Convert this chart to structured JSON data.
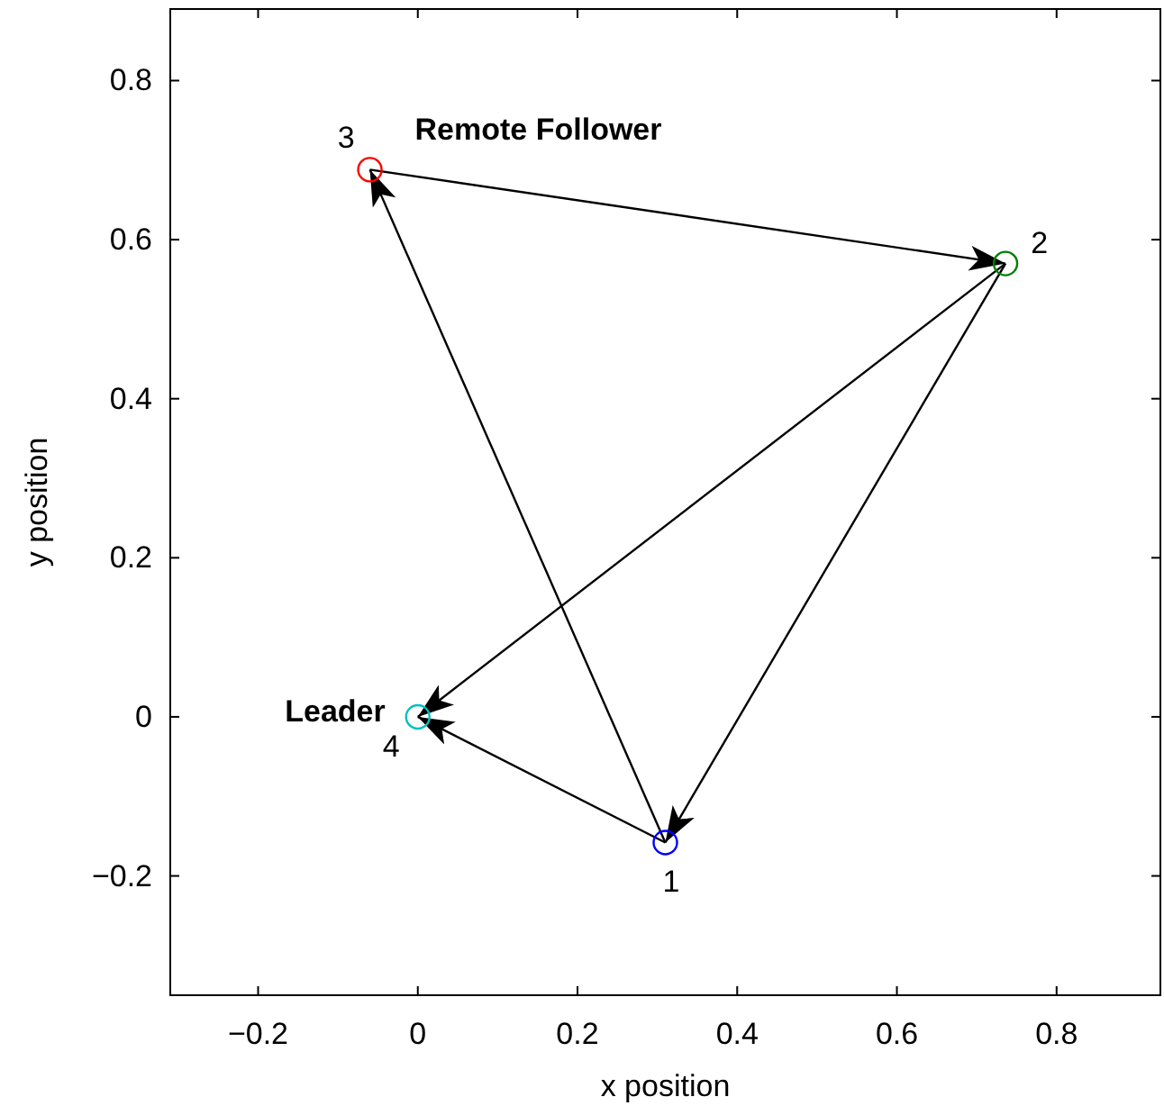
{
  "chart_data": {
    "type": "scatter",
    "xlabel": "x position",
    "ylabel": "y position",
    "xlim": [
      -0.31,
      0.93
    ],
    "ylim": [
      -0.35,
      0.89
    ],
    "xticks": [
      {
        "value": -0.2,
        "label": "−0.2"
      },
      0,
      0.2,
      0.4,
      0.6,
      0.8
    ],
    "yticks": [
      {
        "value": -0.2,
        "label": "−0.2"
      },
      0,
      0.2,
      0.4,
      0.6,
      0.8
    ],
    "grid": false,
    "series": [
      {
        "type": "line",
        "color": "#000000",
        "marker": "none",
        "x": [
          0.31,
          -0.06
        ],
        "values": [
          -0.158,
          0.688
        ]
      },
      {
        "type": "line",
        "color": "#000000",
        "marker": "none",
        "x": [
          -0.06,
          0.736
        ],
        "values": [
          0.688,
          0.57
        ]
      },
      {
        "type": "line",
        "color": "#000000",
        "marker": "none",
        "x": [
          0.736,
          0
        ],
        "values": [
          0.57,
          0
        ]
      },
      {
        "type": "line",
        "color": "#000000",
        "marker": "none",
        "x": [
          0.736,
          0.31
        ],
        "values": [
          0.57,
          -0.158
        ]
      },
      {
        "type": "line",
        "color": "#000000",
        "marker": "none",
        "x": [
          0.31,
          0
        ],
        "values": [
          -0.158,
          0
        ]
      },
      {
        "color": "#0000ff",
        "marker": "circle",
        "x": [
          0.31
        ],
        "values": [
          -0.158
        ]
      },
      {
        "color": "#008000",
        "marker": "circle",
        "x": [
          0.736
        ],
        "values": [
          0.57
        ]
      },
      {
        "color": "#ff0000",
        "marker": "circle",
        "x": [
          -0.06
        ],
        "values": [
          0.688
        ]
      },
      {
        "color": "#00bfbf",
        "marker": "circle",
        "x": [
          0
        ],
        "values": [
          0
        ]
      }
    ],
    "annotations": [
      {
        "text": "1",
        "x": 0.31,
        "y": -0.158
      },
      {
        "text": "2",
        "x": 0.736,
        "y": 0.57
      },
      {
        "text": "3",
        "x": -0.06,
        "y": 0.688
      },
      {
        "text": "4",
        "x": 0,
        "y": 0
      },
      {
        "text": "Remote Follower",
        "x": -0.06,
        "y": 0.688
      },
      {
        "text": "Leader",
        "x": 0,
        "y": 0
      }
    ]
  }
}
